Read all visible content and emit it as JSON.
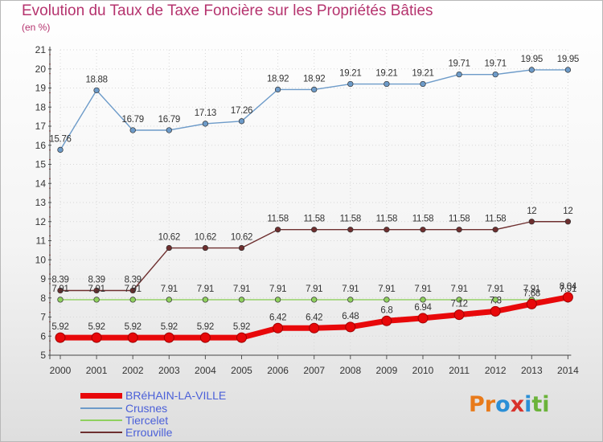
{
  "title": "Evolution du Taux de Taxe Foncière sur les Propriétés Bâties",
  "unit_label": "(en %)",
  "logo": {
    "text": "Proxiti",
    "letters": [
      "P",
      "r",
      "o",
      "x",
      "i",
      "t",
      "i"
    ],
    "colors": [
      "#e87a1a",
      "#e87a1a",
      "#2b8fd6",
      "#d8322b",
      "#2b8fd6",
      "#6bb33a",
      "#6bb33a"
    ]
  },
  "chart_data": {
    "type": "line",
    "x": [
      2000,
      2001,
      2002,
      2003,
      2004,
      2005,
      2006,
      2007,
      2008,
      2009,
      2010,
      2011,
      2012,
      2013,
      2014
    ],
    "ylim": [
      5,
      21
    ],
    "yticks": [
      5,
      6,
      7,
      8,
      9,
      10,
      11,
      12,
      13,
      14,
      15,
      16,
      17,
      18,
      19,
      20,
      21
    ],
    "grid": true,
    "legend_position": "bottom-left",
    "series": [
      {
        "name": "BRéHAIN-LA-VILLE",
        "color": "#e8080a",
        "style": "thick",
        "values": [
          5.92,
          5.92,
          5.92,
          5.92,
          5.92,
          5.92,
          6.42,
          6.42,
          6.48,
          6.8,
          6.94,
          7.12,
          7.3,
          7.68,
          8.04
        ],
        "labels": [
          "5.92",
          "5.92",
          "5.92",
          "5.92",
          "5.92",
          "5.92",
          "6.42",
          "6.42",
          "6.48",
          "6.8",
          "6.94",
          "7.12",
          "7.3",
          "7.68",
          "8.04"
        ]
      },
      {
        "name": "Crusnes",
        "color": "#6d9bc9",
        "values": [
          15.76,
          18.88,
          16.79,
          16.79,
          17.13,
          17.26,
          18.92,
          18.92,
          19.21,
          19.21,
          19.21,
          19.71,
          19.71,
          19.95,
          19.95
        ],
        "labels": [
          "15.76",
          "18.88",
          "16.79",
          "16.79",
          "17.13",
          "17.26",
          "18.92",
          "18.92",
          "19.21",
          "19.21",
          "19.21",
          "19.71",
          "19.71",
          "19.95",
          "19.95"
        ]
      },
      {
        "name": "Tiercelet",
        "color": "#8fd05e",
        "values": [
          7.91,
          7.91,
          7.91,
          7.91,
          7.91,
          7.91,
          7.91,
          7.91,
          7.91,
          7.91,
          7.91,
          7.91,
          7.91,
          7.91,
          7.91
        ],
        "labels": [
          "7.91",
          "7.91",
          "7.91",
          "7.91",
          "7.91",
          "7.91",
          "7.91",
          "7.91",
          "7.91",
          "7.91",
          "7.91",
          "7.91",
          "7.91",
          "7.91",
          "7.91"
        ]
      },
      {
        "name": "Errouville",
        "color": "#6e2f2f",
        "values": [
          8.39,
          8.39,
          8.39,
          10.62,
          10.62,
          10.62,
          11.58,
          11.58,
          11.58,
          11.58,
          11.58,
          11.58,
          11.58,
          12,
          12
        ],
        "labels": [
          "8.39",
          "8.39",
          "8.39",
          "10.62",
          "10.62",
          "10.62",
          "11.58",
          "11.58",
          "11.58",
          "11.58",
          "11.58",
          "11.58",
          "11.58",
          "12",
          "12"
        ]
      }
    ]
  }
}
